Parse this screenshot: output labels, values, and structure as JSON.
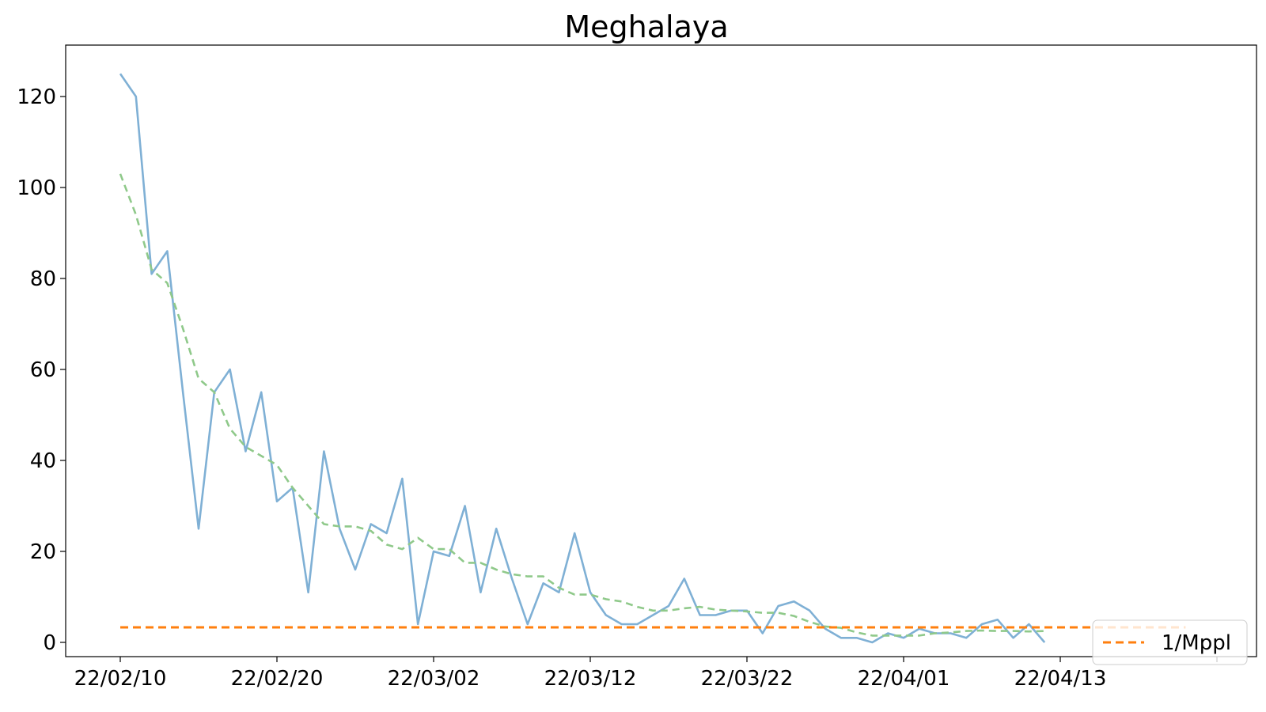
{
  "chart_data": {
    "type": "line",
    "title": "Meghalaya",
    "xlabel": "",
    "ylabel": "",
    "x_tick_labels": [
      "22/02/10",
      "22/02/20",
      "22/03/02",
      "22/03/12",
      "22/03/22",
      "22/04/01",
      "22/04/13",
      ""
    ],
    "y_tick_labels": [
      "0",
      "20",
      "40",
      "60",
      "80",
      "100",
      "120"
    ],
    "ylim": [
      -6,
      131
    ],
    "grid": false,
    "legend_position": "bottom-right",
    "series": [
      {
        "role": "daily",
        "color": "#7fb0d5",
        "style": "solid",
        "values": [
          125,
          120,
          81,
          86,
          55,
          25,
          55,
          60,
          42,
          55,
          31,
          34,
          11,
          42,
          25,
          16,
          26,
          24,
          36,
          4,
          20,
          19,
          30,
          11,
          25,
          14,
          4,
          13,
          11,
          24,
          11,
          6,
          4,
          4,
          6,
          8,
          14,
          6,
          6,
          7,
          7,
          2,
          8,
          9,
          7,
          3,
          1,
          1,
          0,
          2,
          1,
          3,
          2,
          2,
          1,
          4,
          5,
          1,
          4,
          0
        ]
      },
      {
        "role": "moving_average",
        "color": "#8fc98a",
        "style": "dashed",
        "values": [
          103,
          94,
          82,
          79,
          69,
          58,
          55,
          47,
          43,
          41,
          39,
          34,
          30,
          26,
          25.5,
          25.5,
          24.5,
          21.5,
          20.5,
          23,
          20.5,
          20.5,
          17.5,
          17.5,
          16,
          15,
          14.5,
          14.5,
          12,
          10.5,
          10.5,
          9.5,
          9,
          7.8,
          7,
          7,
          7.5,
          7.8,
          7.2,
          7,
          6.8,
          6.5,
          6.5,
          5.8,
          4.5,
          3.5,
          3.2,
          2.2,
          1.5,
          1.5,
          1.5,
          1.5,
          2,
          2.2,
          2.5,
          2.6,
          2.5,
          2.5,
          2.4,
          2.5
        ]
      },
      {
        "name": "1/Mppl",
        "role": "threshold",
        "color": "#ff7f0e",
        "style": "dashed",
        "constant": 3.3,
        "x_span_days": [
          0,
          68
        ]
      }
    ]
  }
}
